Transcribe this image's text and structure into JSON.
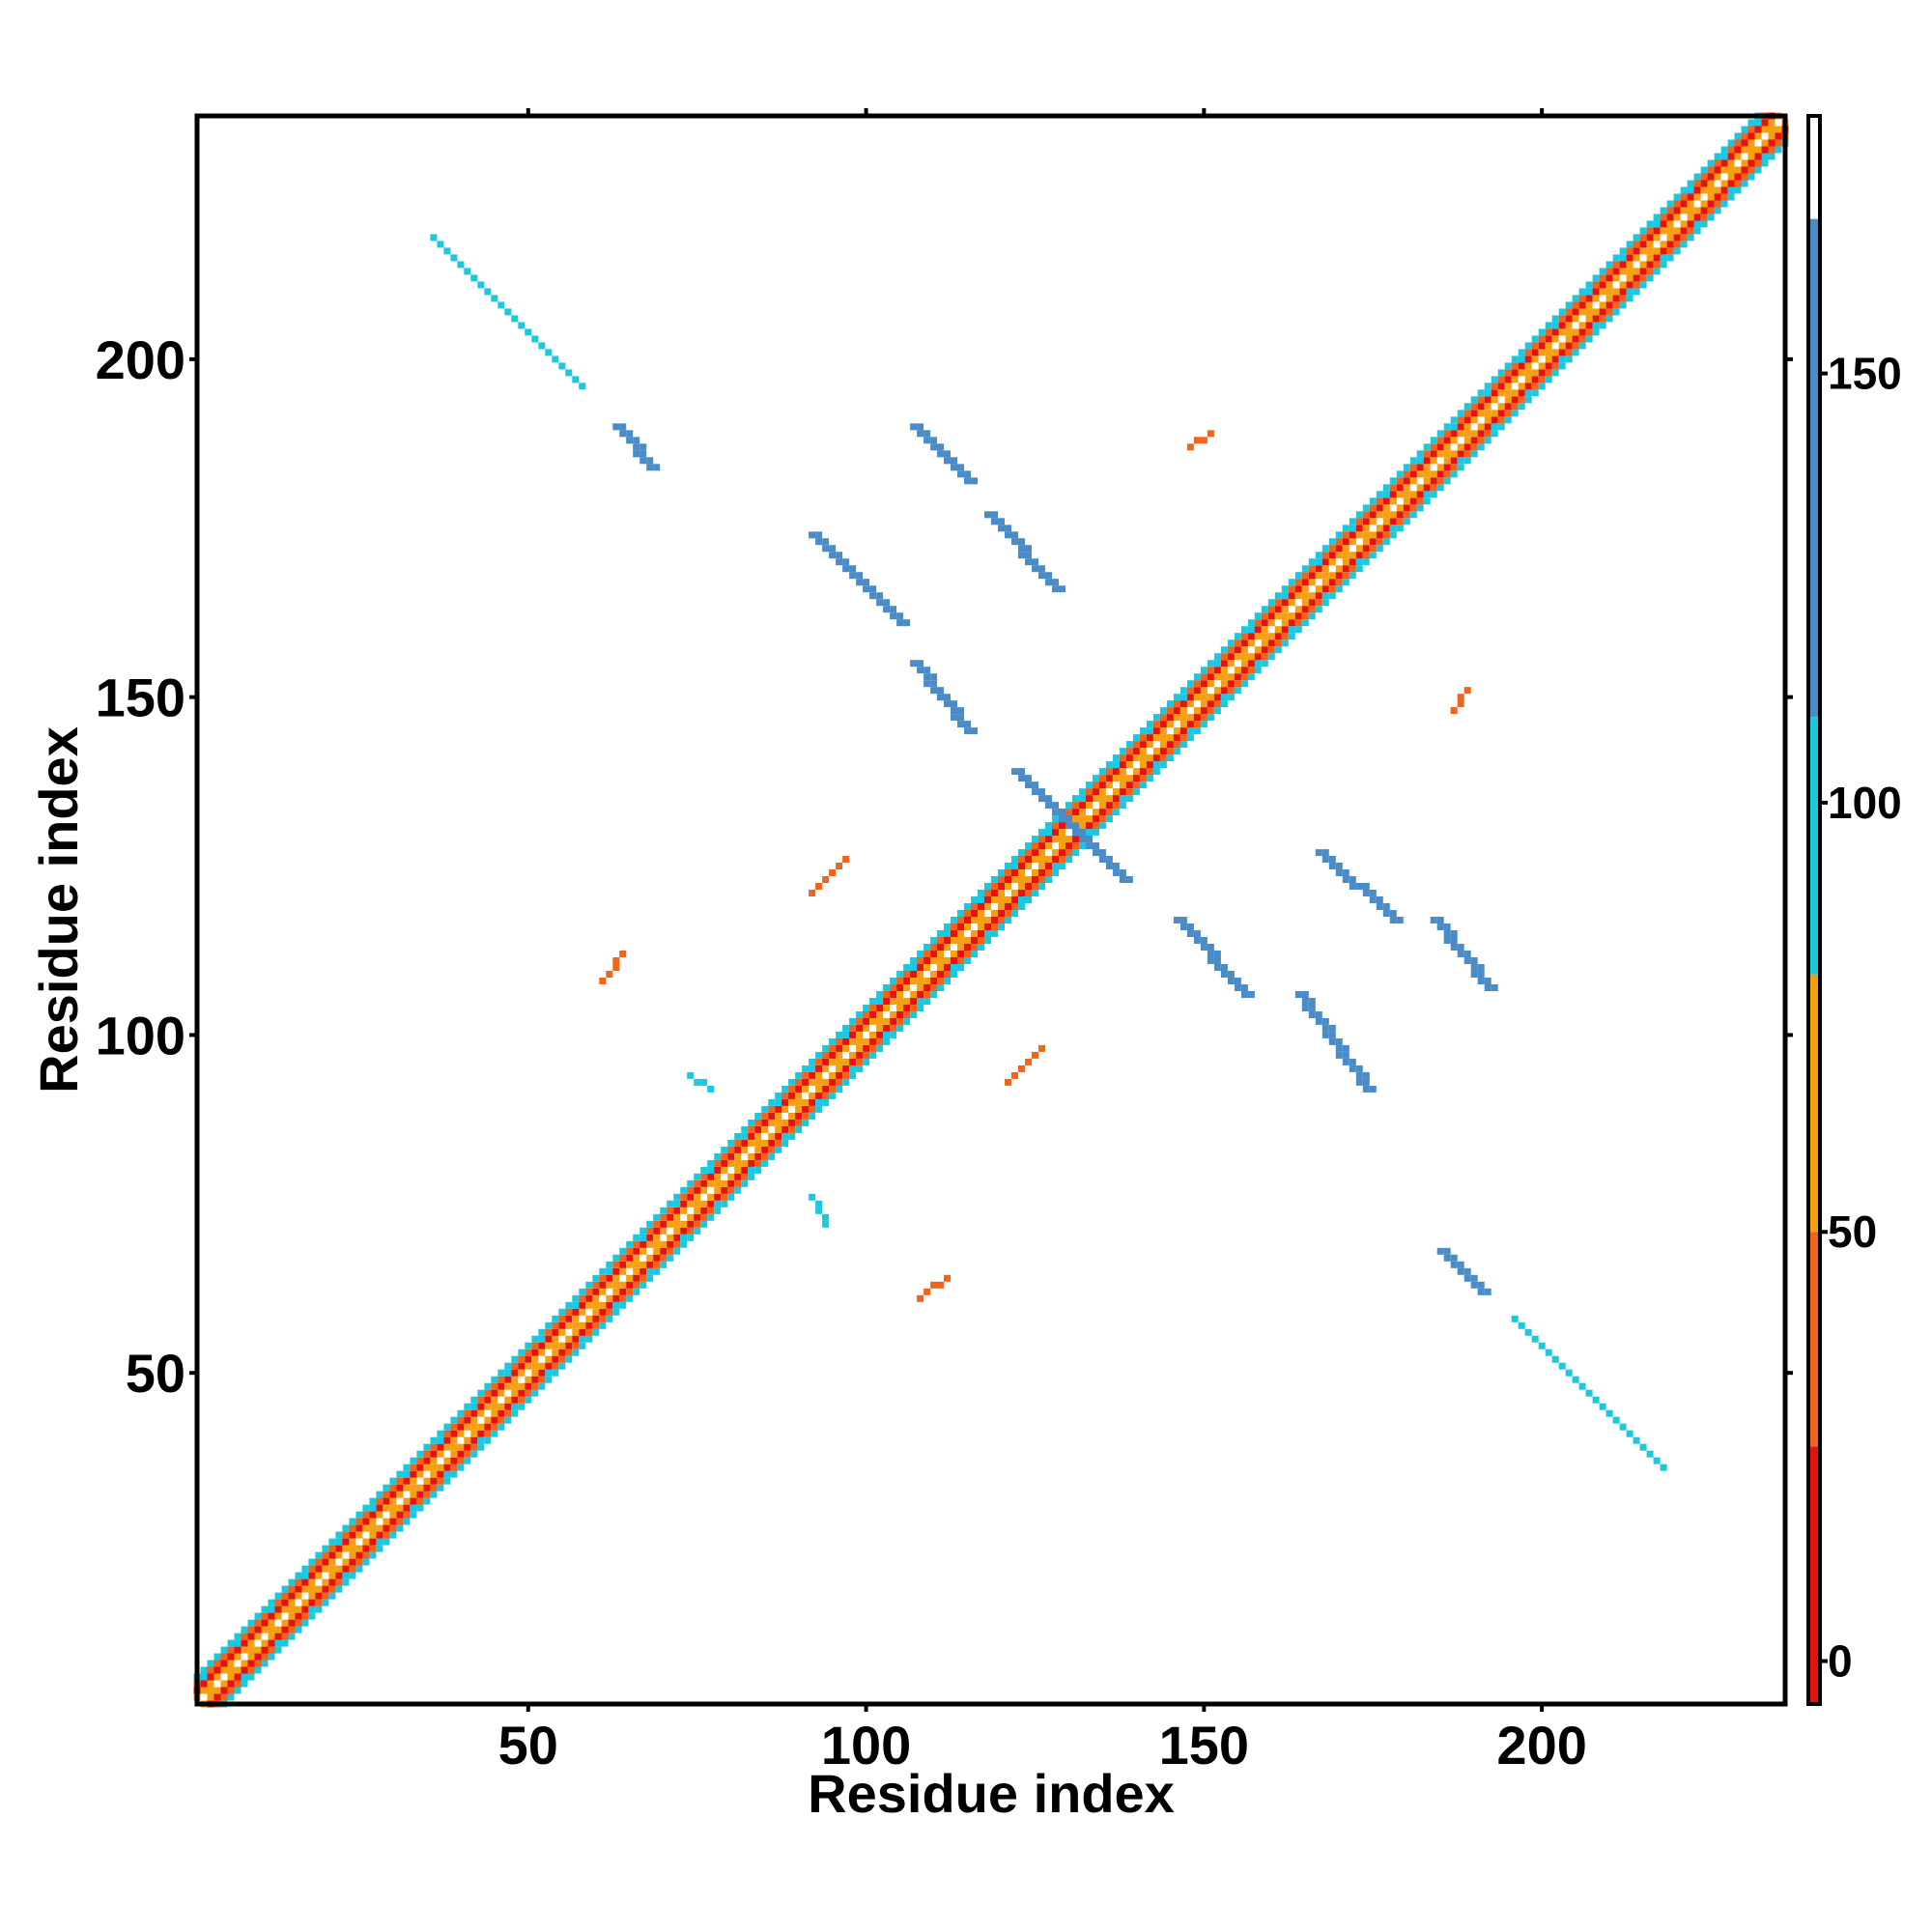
{
  "chart_data": {
    "type": "heatmap",
    "title": "",
    "xlabel": "Residue index",
    "ylabel": "Residue index",
    "xlim": [
      1,
      236
    ],
    "ylim": [
      1,
      236
    ],
    "x_ticks": [
      50,
      100,
      150,
      200
    ],
    "y_ticks": [
      50,
      100,
      150,
      200
    ],
    "x_tick_labels": [
      "50",
      "100",
      "150",
      "200"
    ],
    "y_tick_labels": [
      "50",
      "100",
      "150",
      "200"
    ],
    "grid": false,
    "colorbar": {
      "range": [
        -5,
        180
      ],
      "ticks": [
        0,
        50,
        100,
        150
      ],
      "tick_labels": [
        "0",
        "50",
        "100",
        "150"
      ],
      "bands": [
        {
          "from": -5,
          "to": 25,
          "color": "#e8120c"
        },
        {
          "from": 25,
          "to": 50,
          "color": "#f0641c"
        },
        {
          "from": 50,
          "to": 80,
          "color": "#f4a012"
        },
        {
          "from": 80,
          "to": 110,
          "color": "#1cc8e0"
        },
        {
          "from": 110,
          "to": 168,
          "color": "#4a8cc8"
        },
        {
          "from": 168,
          "to": 180,
          "color": "#ffffff"
        }
      ]
    },
    "diagonal_band": {
      "halfwidth": 4,
      "colors_by_offset": [
        "#ffffff",
        "#f4a012",
        "#e8120c",
        "#f0641c",
        "#1cc8e0"
      ]
    },
    "features": [
      {
        "x0": 63,
        "y0": 190,
        "x1": 68,
        "y1": 184,
        "color": "#4a8cc8"
      },
      {
        "x0": 107,
        "y0": 190,
        "x1": 115,
        "y1": 182,
        "color": "#4a8cc8"
      },
      {
        "x0": 92,
        "y0": 174,
        "x1": 105,
        "y1": 161,
        "color": "#4a8cc8"
      },
      {
        "x0": 118,
        "y0": 177,
        "x1": 128,
        "y1": 166,
        "color": "#4a8cc8"
      },
      {
        "x0": 107,
        "y0": 155,
        "x1": 115,
        "y1": 145,
        "color": "#4a8cc8"
      },
      {
        "x0": 122,
        "y0": 139,
        "x1": 138,
        "y1": 123,
        "color": "#4a8cc8"
      },
      {
        "x0": 167,
        "y0": 127,
        "x1": 178,
        "y1": 117,
        "color": "#4a8cc8"
      },
      {
        "x0": 146,
        "y0": 117,
        "x1": 156,
        "y1": 106,
        "color": "#4a8cc8"
      },
      {
        "x0": 184,
        "y0": 117,
        "x1": 192,
        "y1": 107,
        "color": "#4a8cc8"
      },
      {
        "x0": 164,
        "y0": 106,
        "x1": 174,
        "y1": 92,
        "color": "#4a8cc8"
      },
      {
        "x0": 185,
        "y0": 68,
        "x1": 191,
        "y1": 62,
        "color": "#4a8cc8"
      },
      {
        "x0": 74,
        "y0": 94,
        "x1": 77,
        "y1": 92,
        "color": "#1cc8e0"
      },
      {
        "x0": 92,
        "y0": 76,
        "x1": 94,
        "y1": 72,
        "color": "#1cc8e0"
      },
      {
        "x0": 36,
        "y0": 218,
        "x1": 58,
        "y1": 196,
        "color": "#1cc8e0"
      },
      {
        "x0": 196,
        "y0": 58,
        "x1": 218,
        "y1": 36,
        "color": "#1cc8e0"
      },
      {
        "x0": 92,
        "y0": 121,
        "x1": 97,
        "y1": 126,
        "color": "#f0641c"
      },
      {
        "x0": 61,
        "y0": 108,
        "x1": 64,
        "y1": 112,
        "color": "#f0641c"
      },
      {
        "x0": 121,
        "y0": 93,
        "x1": 126,
        "y1": 98,
        "color": "#f0641c"
      },
      {
        "x0": 108,
        "y0": 61,
        "x1": 112,
        "y1": 64,
        "color": "#f0641c"
      },
      {
        "x0": 187,
        "y0": 148,
        "x1": 189,
        "y1": 151,
        "color": "#f0641c"
      },
      {
        "x0": 148,
        "y0": 187,
        "x1": 151,
        "y1": 189,
        "color": "#f0641c"
      }
    ]
  }
}
